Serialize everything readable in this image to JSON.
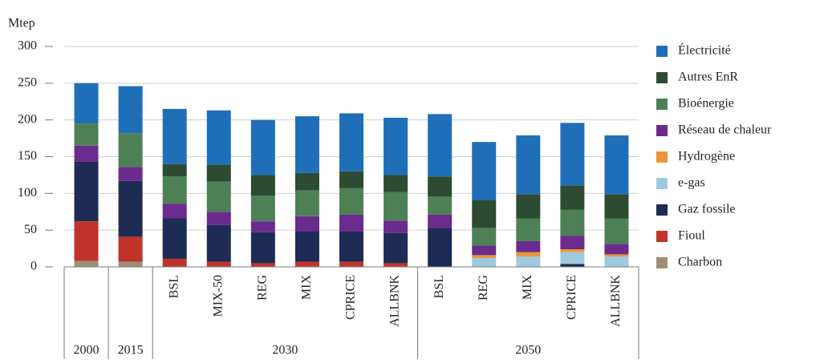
{
  "chart_data": {
    "type": "stacked-bar",
    "y_label": "Mtep",
    "ylim": [
      0,
      300
    ],
    "yticks": [
      0,
      50,
      100,
      150,
      200,
      250,
      300
    ],
    "grid": true,
    "legend": "right",
    "groups": [
      {
        "label": "2000",
        "categories": [
          null
        ]
      },
      {
        "label": "2015",
        "categories": [
          null
        ]
      },
      {
        "label": "2030",
        "categories": [
          "BSL",
          "MIX-50",
          "REG",
          "MIX",
          "CPRICE",
          "ALLBNK"
        ]
      },
      {
        "label": "2050",
        "categories": [
          "BSL",
          "REG",
          "MIX",
          "CPRICE",
          "ALLBNK"
        ]
      }
    ],
    "series": [
      {
        "name": "Charbon",
        "color": "#9b8f78",
        "values": [
          8,
          7,
          0,
          0,
          0,
          0,
          0,
          0,
          0,
          0,
          0,
          0,
          0
        ]
      },
      {
        "name": "Fioul",
        "color": "#c0332b",
        "values": [
          54,
          34,
          11,
          7,
          5,
          7,
          7,
          5,
          0,
          0,
          0,
          0,
          0
        ]
      },
      {
        "name": "Gaz fossile",
        "color": "#1e2b54",
        "values": [
          81,
          76,
          55,
          50,
          42,
          41,
          41,
          41,
          53,
          0,
          0,
          4,
          0
        ]
      },
      {
        "name": "e-gas",
        "color": "#9ecae0",
        "values": [
          0,
          0,
          0,
          0,
          0,
          0,
          0,
          0,
          0,
          12,
          14,
          16,
          14
        ]
      },
      {
        "name": "Hydrogène",
        "color": "#e8973a",
        "values": [
          0,
          0,
          0,
          0,
          0,
          0,
          0,
          0,
          0,
          4,
          6,
          4,
          3
        ]
      },
      {
        "name": "Réseau de chaleur",
        "color": "#6a2a8e",
        "values": [
          22,
          19,
          20,
          18,
          15,
          21,
          23,
          17,
          18,
          13,
          15,
          18,
          14
        ]
      },
      {
        "name": "Bioénergie",
        "color": "#4e8055",
        "values": [
          30,
          46,
          37,
          41,
          35,
          35,
          36,
          39,
          25,
          24,
          31,
          36,
          35
        ]
      },
      {
        "name": "Autres EnR",
        "color": "#2d4a33",
        "values": [
          0,
          0,
          17,
          23,
          28,
          24,
          23,
          23,
          27,
          38,
          33,
          33,
          33
        ]
      },
      {
        "name": "Électricité",
        "color": "#1f6fb8",
        "values": [
          55,
          64,
          75,
          74,
          75,
          77,
          79,
          78,
          85,
          79,
          80,
          85,
          80
        ]
      }
    ]
  }
}
